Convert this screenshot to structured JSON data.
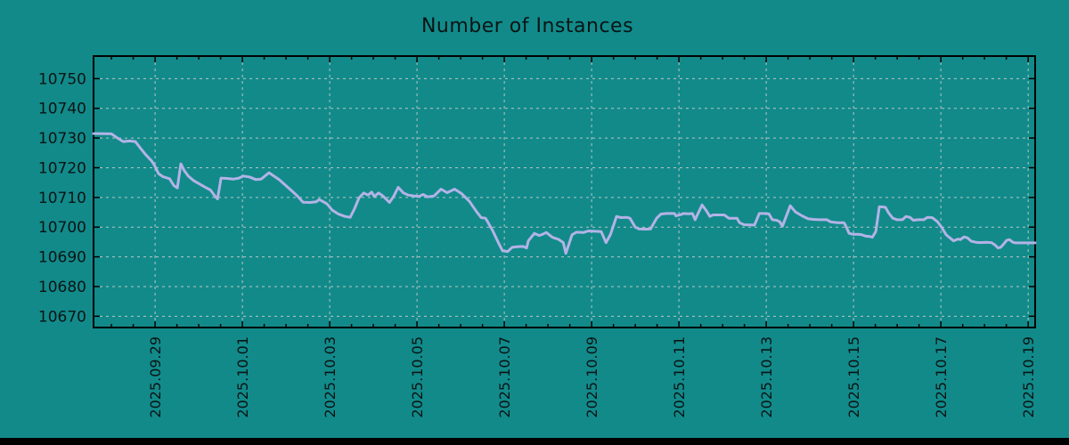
{
  "chart_data": {
    "type": "line",
    "title": "Number of Instances",
    "colors": {
      "background": "#128a8a",
      "line": "#b3b3e6",
      "grid": "#cccccc",
      "border": "#000000",
      "text": "#0a1414"
    },
    "ylim": [
      10666.2,
      10757.6
    ],
    "xlim_days": [
      -1.41,
      20.16
    ],
    "y_ticks": [
      10670,
      10680,
      10690,
      10700,
      10710,
      10720,
      10730,
      10740,
      10750
    ],
    "x_ticks": [
      {
        "d": 0,
        "label": "2025.09.29"
      },
      {
        "d": 2,
        "label": "2025.10.01"
      },
      {
        "d": 4,
        "label": "2025.10.03"
      },
      {
        "d": 6,
        "label": "2025.10.05"
      },
      {
        "d": 8,
        "label": "2025.10.07"
      },
      {
        "d": 10,
        "label": "2025.10.09"
      },
      {
        "d": 12,
        "label": "2025.10.11"
      },
      {
        "d": 14,
        "label": "2025.10.13"
      },
      {
        "d": 16,
        "label": "2025.10.15"
      },
      {
        "d": 18,
        "label": "2025.10.17"
      },
      {
        "d": 20,
        "label": "2025.10.19"
      }
    ],
    "x_minor_step_days": 0.5,
    "grid_on": true,
    "legend": "none",
    "series": [
      {
        "name": "instances",
        "points": [
          [
            -1.41,
            10731.5
          ],
          [
            -1.27,
            10731.5
          ],
          [
            -1.0,
            10731.4
          ],
          [
            -0.86,
            10730.0
          ],
          [
            -0.73,
            10728.8
          ],
          [
            -0.59,
            10729.0
          ],
          [
            -0.45,
            10728.8
          ],
          [
            -0.33,
            10726.5
          ],
          [
            -0.22,
            10724.5
          ],
          [
            -0.08,
            10722.3
          ],
          [
            -0.02,
            10721.0
          ],
          [
            0.08,
            10718.0
          ],
          [
            0.18,
            10717.0
          ],
          [
            0.33,
            10716.3
          ],
          [
            0.43,
            10714.0
          ],
          [
            0.51,
            10713.2
          ],
          [
            0.59,
            10721.3
          ],
          [
            0.67,
            10719.0
          ],
          [
            0.76,
            10717.2
          ],
          [
            0.88,
            10715.7
          ],
          [
            1.02,
            10714.5
          ],
          [
            1.14,
            10713.5
          ],
          [
            1.27,
            10712.5
          ],
          [
            1.37,
            10710.5
          ],
          [
            1.43,
            10709.5
          ],
          [
            1.51,
            10716.5
          ],
          [
            1.65,
            10716.4
          ],
          [
            1.8,
            10716.2
          ],
          [
            1.92,
            10716.5
          ],
          [
            2.02,
            10717.2
          ],
          [
            2.16,
            10716.9
          ],
          [
            2.31,
            10716.0
          ],
          [
            2.43,
            10716.2
          ],
          [
            2.61,
            10718.3
          ],
          [
            2.84,
            10716.0
          ],
          [
            3.04,
            10713.4
          ],
          [
            3.24,
            10710.8
          ],
          [
            3.39,
            10708.4
          ],
          [
            3.55,
            10708.3
          ],
          [
            3.69,
            10708.5
          ],
          [
            3.76,
            10709.3
          ],
          [
            3.86,
            10708.5
          ],
          [
            3.94,
            10707.8
          ],
          [
            4.06,
            10705.7
          ],
          [
            4.2,
            10704.4
          ],
          [
            4.35,
            10703.6
          ],
          [
            4.47,
            10703.3
          ],
          [
            4.57,
            10706.2
          ],
          [
            4.67,
            10709.8
          ],
          [
            4.78,
            10711.5
          ],
          [
            4.88,
            10710.8
          ],
          [
            4.96,
            10711.8
          ],
          [
            5.02,
            10710.3
          ],
          [
            5.12,
            10711.5
          ],
          [
            5.22,
            10710.5
          ],
          [
            5.37,
            10708.3
          ],
          [
            5.47,
            10710.5
          ],
          [
            5.57,
            10713.4
          ],
          [
            5.69,
            10711.5
          ],
          [
            5.8,
            10710.8
          ],
          [
            5.94,
            10710.5
          ],
          [
            6.04,
            10710.3
          ],
          [
            6.14,
            10711.0
          ],
          [
            6.24,
            10710.2
          ],
          [
            6.39,
            10710.5
          ],
          [
            6.55,
            10712.8
          ],
          [
            6.69,
            10711.6
          ],
          [
            6.86,
            10712.8
          ],
          [
            7.02,
            10711.3
          ],
          [
            7.2,
            10708.7
          ],
          [
            7.37,
            10705.1
          ],
          [
            7.47,
            10703.2
          ],
          [
            7.57,
            10703.0
          ],
          [
            7.61,
            10702.0
          ],
          [
            7.73,
            10698.9
          ],
          [
            7.88,
            10694.3
          ],
          [
            7.96,
            10692.0
          ],
          [
            8.08,
            10691.8
          ],
          [
            8.18,
            10693.2
          ],
          [
            8.29,
            10693.4
          ],
          [
            8.43,
            10693.5
          ],
          [
            8.51,
            10693.0
          ],
          [
            8.55,
            10695.4
          ],
          [
            8.69,
            10697.9
          ],
          [
            8.8,
            10697.2
          ],
          [
            8.88,
            10697.6
          ],
          [
            8.96,
            10698.2
          ],
          [
            9.1,
            10696.6
          ],
          [
            9.24,
            10695.9
          ],
          [
            9.35,
            10694.8
          ],
          [
            9.41,
            10691.2
          ],
          [
            9.55,
            10697.4
          ],
          [
            9.65,
            10698.3
          ],
          [
            9.82,
            10698.2
          ],
          [
            9.92,
            10698.7
          ],
          [
            10.08,
            10698.6
          ],
          [
            10.22,
            10698.5
          ],
          [
            10.33,
            10694.8
          ],
          [
            10.43,
            10697.5
          ],
          [
            10.57,
            10703.6
          ],
          [
            10.67,
            10703.2
          ],
          [
            10.8,
            10703.3
          ],
          [
            10.88,
            10703.0
          ],
          [
            11.0,
            10700.0
          ],
          [
            11.08,
            10699.4
          ],
          [
            11.24,
            10699.3
          ],
          [
            11.35,
            10699.4
          ],
          [
            11.49,
            10703.0
          ],
          [
            11.59,
            10704.4
          ],
          [
            11.71,
            10704.6
          ],
          [
            11.9,
            10704.6
          ],
          [
            11.93,
            10703.8
          ],
          [
            12.04,
            10704.2
          ],
          [
            12.1,
            10704.6
          ],
          [
            12.22,
            10704.5
          ],
          [
            12.31,
            10704.6
          ],
          [
            12.37,
            10702.5
          ],
          [
            12.53,
            10707.5
          ],
          [
            12.63,
            10705.5
          ],
          [
            12.71,
            10703.6
          ],
          [
            12.78,
            10704.1
          ],
          [
            13.04,
            10704.1
          ],
          [
            13.14,
            10703.0
          ],
          [
            13.33,
            10703.0
          ],
          [
            13.39,
            10701.5
          ],
          [
            13.49,
            10700.8
          ],
          [
            13.73,
            10700.7
          ],
          [
            13.84,
            10704.6
          ],
          [
            13.92,
            10704.6
          ],
          [
            14.06,
            10704.5
          ],
          [
            14.14,
            10702.5
          ],
          [
            14.24,
            10702.3
          ],
          [
            14.31,
            10701.8
          ],
          [
            14.37,
            10700.3
          ],
          [
            14.55,
            10707.2
          ],
          [
            14.67,
            10705.1
          ],
          [
            14.82,
            10703.8
          ],
          [
            14.96,
            10702.8
          ],
          [
            15.08,
            10702.6
          ],
          [
            15.22,
            10702.5
          ],
          [
            15.39,
            10702.5
          ],
          [
            15.47,
            10701.8
          ],
          [
            15.63,
            10701.5
          ],
          [
            15.78,
            10701.5
          ],
          [
            15.82,
            10700.5
          ],
          [
            15.9,
            10697.9
          ],
          [
            15.98,
            10697.6
          ],
          [
            16.1,
            10697.6
          ],
          [
            16.18,
            10697.5
          ],
          [
            16.27,
            10697.0
          ],
          [
            16.39,
            10696.8
          ],
          [
            16.43,
            10696.6
          ],
          [
            16.51,
            10698.5
          ],
          [
            16.59,
            10706.9
          ],
          [
            16.65,
            10706.8
          ],
          [
            16.73,
            10706.7
          ],
          [
            16.8,
            10704.9
          ],
          [
            16.9,
            10703.0
          ],
          [
            17.0,
            10702.5
          ],
          [
            17.12,
            10702.5
          ],
          [
            17.2,
            10703.6
          ],
          [
            17.29,
            10703.3
          ],
          [
            17.37,
            10702.3
          ],
          [
            17.47,
            10702.5
          ],
          [
            17.61,
            10702.5
          ],
          [
            17.69,
            10703.3
          ],
          [
            17.8,
            10703.2
          ],
          [
            17.92,
            10701.9
          ],
          [
            18.02,
            10699.9
          ],
          [
            18.12,
            10697.5
          ],
          [
            18.18,
            10696.7
          ],
          [
            18.29,
            10695.4
          ],
          [
            18.39,
            10696.0
          ],
          [
            18.45,
            10695.8
          ],
          [
            18.53,
            10696.7
          ],
          [
            18.61,
            10696.4
          ],
          [
            18.69,
            10695.3
          ],
          [
            18.8,
            10694.9
          ],
          [
            18.9,
            10694.8
          ],
          [
            19.04,
            10694.9
          ],
          [
            19.16,
            10694.8
          ],
          [
            19.24,
            10694.0
          ],
          [
            19.31,
            10693.0
          ],
          [
            19.37,
            10693.2
          ],
          [
            19.45,
            10694.5
          ],
          [
            19.51,
            10695.6
          ],
          [
            19.57,
            10695.8
          ],
          [
            19.65,
            10694.9
          ],
          [
            19.71,
            10694.7
          ],
          [
            19.84,
            10694.7
          ],
          [
            19.96,
            10694.7
          ],
          [
            20.08,
            10694.7
          ],
          [
            20.16,
            10694.7
          ]
        ]
      }
    ]
  }
}
